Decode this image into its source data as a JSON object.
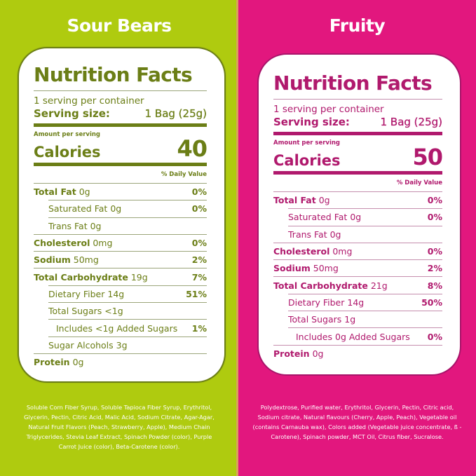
{
  "colors": {
    "left_bg": "#AFCB0F",
    "left_text": "#6B7E16",
    "right_bg": "#E2177E",
    "right_text": "#B0196D"
  },
  "panels": [
    {
      "flavor": "Sour Bears",
      "nutrition": {
        "title": "Nutrition Facts",
        "servings": "1 serving per container",
        "serving_size_label": "Serving size:",
        "serving_size_value": "1 Bag (25g)",
        "amount_per_serving": "Amount per serving",
        "calories_label": "Calories",
        "calories_value": "40",
        "daily_value_header": "% Daily Value",
        "rows": [
          {
            "label": "Total Fat",
            "amount": "0g",
            "pct": "0%"
          },
          {
            "label": "Saturated Fat",
            "amount": "0g",
            "pct": "0%"
          },
          {
            "label": "Trans Fat",
            "amount": "0g",
            "pct": ""
          },
          {
            "label": "Cholesterol",
            "amount": "0mg",
            "pct": "0%"
          },
          {
            "label": "Sodium",
            "amount": "50mg",
            "pct": "2%"
          },
          {
            "label": "Total Carbohydrate",
            "amount": "19g",
            "pct": "7%"
          },
          {
            "label": "Dietary Fiber",
            "amount": "14g",
            "pct": "51%"
          },
          {
            "label": "Total Sugars",
            "amount": "<1g",
            "pct": ""
          },
          {
            "label": "Includes <1g Added Sugars",
            "amount": "",
            "pct": "1%"
          },
          {
            "label": "Sugar Alcohols",
            "amount": "3g",
            "pct": ""
          },
          {
            "label": "Protein",
            "amount": "0g",
            "pct": ""
          }
        ]
      },
      "ingredients": "Soluble Corn Fiber Syrup, Soluble Tapioca Fiber Syrup, Erythritol, Glycerin, Pectin, Citric Acid, Malic Acid, Sodium Citrate, Agar-Agar, Natural Fruit Flavors (Peach, Strawberry, Apple), Medium Chain Triglycerides, Stevia Leaf Extract, Spinach Powder (color), Purple Carrot Juice (color), Beta-Carotene (color)."
    },
    {
      "flavor": "Fruity",
      "nutrition": {
        "title": "Nutrition Facts",
        "servings": "1 serving per container",
        "serving_size_label": "Serving size:",
        "serving_size_value": "1 Bag (25g)",
        "amount_per_serving": "Amount per serving",
        "calories_label": "Calories",
        "calories_value": "50",
        "daily_value_header": "% Daily Value",
        "rows": [
          {
            "label": "Total Fat",
            "amount": "0g",
            "pct": "0%"
          },
          {
            "label": "Saturated Fat",
            "amount": "0g",
            "pct": "0%"
          },
          {
            "label": "Trans Fat",
            "amount": "0g",
            "pct": ""
          },
          {
            "label": "Cholesterol",
            "amount": "0mg",
            "pct": "0%"
          },
          {
            "label": "Sodium",
            "amount": "50mg",
            "pct": "2%"
          },
          {
            "label": "Total Carbohydrate",
            "amount": "21g",
            "pct": "8%"
          },
          {
            "label": "Dietary Fiber",
            "amount": "14g",
            "pct": "50%"
          },
          {
            "label": "Total Sugars",
            "amount": "1g",
            "pct": ""
          },
          {
            "label": "Includes 0g Added Sugars",
            "amount": "",
            "pct": "0%"
          },
          {
            "label": "Protein",
            "amount": "0g",
            "pct": ""
          }
        ]
      },
      "ingredients": "Polydextrose, Purified water, Erythritol, Glycerin, Pectin, Citric acid, Sodium citrate, Natural flavours (Cherry, Apple, Peach), Vegetable oil (contains Carnauba wax), Colors added (Vegetable juice concentrate, ß -Carotene), Spinach powder, MCT Oil, Citrus fiber, Sucralose."
    }
  ]
}
